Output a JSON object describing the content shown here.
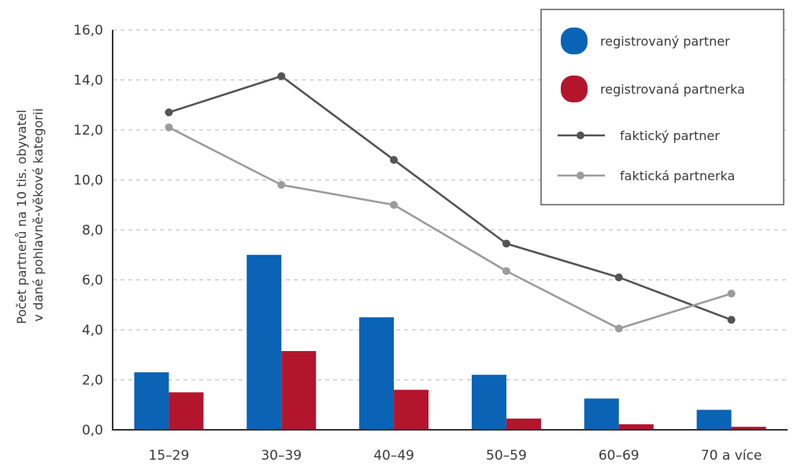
{
  "chart_data": {
    "type": "bar",
    "categories": [
      "15–29",
      "30–39",
      "40–49",
      "50–59",
      "60–69",
      "70 a více"
    ],
    "ylabel_lines": [
      "Počet partnerů na 10 tis. obyvatel",
      "v dané pohlavně-věkové kategorii"
    ],
    "xlabel": "",
    "ylim": [
      0,
      16
    ],
    "yticks": [
      0,
      2,
      4,
      6,
      8,
      10,
      12,
      14,
      16
    ],
    "ytick_labels": [
      "0,0",
      "2,0",
      "4,0",
      "6,0",
      "8,0",
      "10,0",
      "12,0",
      "14,0",
      "16,0"
    ],
    "grid": true,
    "legend_position": "top-right",
    "series": [
      {
        "name": "registrovaný partner",
        "kind": "bar",
        "color": "#0a63b5",
        "values": [
          2.3,
          7.0,
          4.5,
          2.2,
          1.25,
          0.8
        ]
      },
      {
        "name": "registrovaná partnerka",
        "kind": "bar",
        "color": "#b3152d",
        "values": [
          1.5,
          3.15,
          1.6,
          0.45,
          0.22,
          0.12
        ]
      },
      {
        "name": "faktický partner",
        "kind": "line",
        "color": "#545454",
        "values": [
          12.7,
          14.15,
          10.8,
          7.45,
          6.1,
          4.4
        ]
      },
      {
        "name": "faktická partnerka",
        "kind": "line",
        "color": "#9c9c9c",
        "values": [
          12.1,
          9.8,
          9.0,
          6.35,
          4.05,
          5.45
        ]
      }
    ]
  }
}
